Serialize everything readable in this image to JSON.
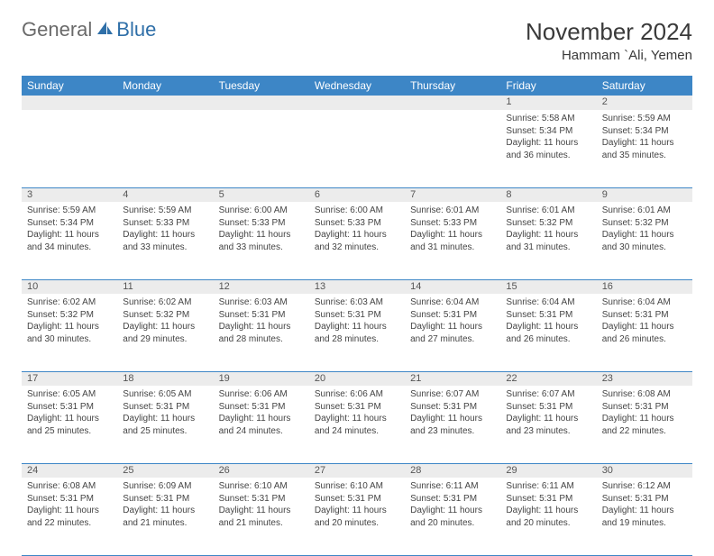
{
  "brand": {
    "general": "General",
    "blue": "Blue"
  },
  "header": {
    "month": "November 2024",
    "location": "Hammam `Ali, Yemen"
  },
  "weekdays": [
    "Sunday",
    "Monday",
    "Tuesday",
    "Wednesday",
    "Thursday",
    "Friday",
    "Saturday"
  ],
  "colors": {
    "header_bg": "#3d86c6",
    "daynum_bg": "#ececec"
  },
  "weeks": [
    {
      "nums": [
        "",
        "",
        "",
        "",
        "",
        "1",
        "2"
      ],
      "cells": [
        "",
        "",
        "",
        "",
        "",
        "Sunrise: 5:58 AM\nSunset: 5:34 PM\nDaylight: 11 hours and 36 minutes.",
        "Sunrise: 5:59 AM\nSunset: 5:34 PM\nDaylight: 11 hours and 35 minutes."
      ]
    },
    {
      "nums": [
        "3",
        "4",
        "5",
        "6",
        "7",
        "8",
        "9"
      ],
      "cells": [
        "Sunrise: 5:59 AM\nSunset: 5:34 PM\nDaylight: 11 hours and 34 minutes.",
        "Sunrise: 5:59 AM\nSunset: 5:33 PM\nDaylight: 11 hours and 33 minutes.",
        "Sunrise: 6:00 AM\nSunset: 5:33 PM\nDaylight: 11 hours and 33 minutes.",
        "Sunrise: 6:00 AM\nSunset: 5:33 PM\nDaylight: 11 hours and 32 minutes.",
        "Sunrise: 6:01 AM\nSunset: 5:33 PM\nDaylight: 11 hours and 31 minutes.",
        "Sunrise: 6:01 AM\nSunset: 5:32 PM\nDaylight: 11 hours and 31 minutes.",
        "Sunrise: 6:01 AM\nSunset: 5:32 PM\nDaylight: 11 hours and 30 minutes."
      ]
    },
    {
      "nums": [
        "10",
        "11",
        "12",
        "13",
        "14",
        "15",
        "16"
      ],
      "cells": [
        "Sunrise: 6:02 AM\nSunset: 5:32 PM\nDaylight: 11 hours and 30 minutes.",
        "Sunrise: 6:02 AM\nSunset: 5:32 PM\nDaylight: 11 hours and 29 minutes.",
        "Sunrise: 6:03 AM\nSunset: 5:31 PM\nDaylight: 11 hours and 28 minutes.",
        "Sunrise: 6:03 AM\nSunset: 5:31 PM\nDaylight: 11 hours and 28 minutes.",
        "Sunrise: 6:04 AM\nSunset: 5:31 PM\nDaylight: 11 hours and 27 minutes.",
        "Sunrise: 6:04 AM\nSunset: 5:31 PM\nDaylight: 11 hours and 26 minutes.",
        "Sunrise: 6:04 AM\nSunset: 5:31 PM\nDaylight: 11 hours and 26 minutes."
      ]
    },
    {
      "nums": [
        "17",
        "18",
        "19",
        "20",
        "21",
        "22",
        "23"
      ],
      "cells": [
        "Sunrise: 6:05 AM\nSunset: 5:31 PM\nDaylight: 11 hours and 25 minutes.",
        "Sunrise: 6:05 AM\nSunset: 5:31 PM\nDaylight: 11 hours and 25 minutes.",
        "Sunrise: 6:06 AM\nSunset: 5:31 PM\nDaylight: 11 hours and 24 minutes.",
        "Sunrise: 6:06 AM\nSunset: 5:31 PM\nDaylight: 11 hours and 24 minutes.",
        "Sunrise: 6:07 AM\nSunset: 5:31 PM\nDaylight: 11 hours and 23 minutes.",
        "Sunrise: 6:07 AM\nSunset: 5:31 PM\nDaylight: 11 hours and 23 minutes.",
        "Sunrise: 6:08 AM\nSunset: 5:31 PM\nDaylight: 11 hours and 22 minutes."
      ]
    },
    {
      "nums": [
        "24",
        "25",
        "26",
        "27",
        "28",
        "29",
        "30"
      ],
      "cells": [
        "Sunrise: 6:08 AM\nSunset: 5:31 PM\nDaylight: 11 hours and 22 minutes.",
        "Sunrise: 6:09 AM\nSunset: 5:31 PM\nDaylight: 11 hours and 21 minutes.",
        "Sunrise: 6:10 AM\nSunset: 5:31 PM\nDaylight: 11 hours and 21 minutes.",
        "Sunrise: 6:10 AM\nSunset: 5:31 PM\nDaylight: 11 hours and 20 minutes.",
        "Sunrise: 6:11 AM\nSunset: 5:31 PM\nDaylight: 11 hours and 20 minutes.",
        "Sunrise: 6:11 AM\nSunset: 5:31 PM\nDaylight: 11 hours and 20 minutes.",
        "Sunrise: 6:12 AM\nSunset: 5:31 PM\nDaylight: 11 hours and 19 minutes."
      ]
    }
  ]
}
